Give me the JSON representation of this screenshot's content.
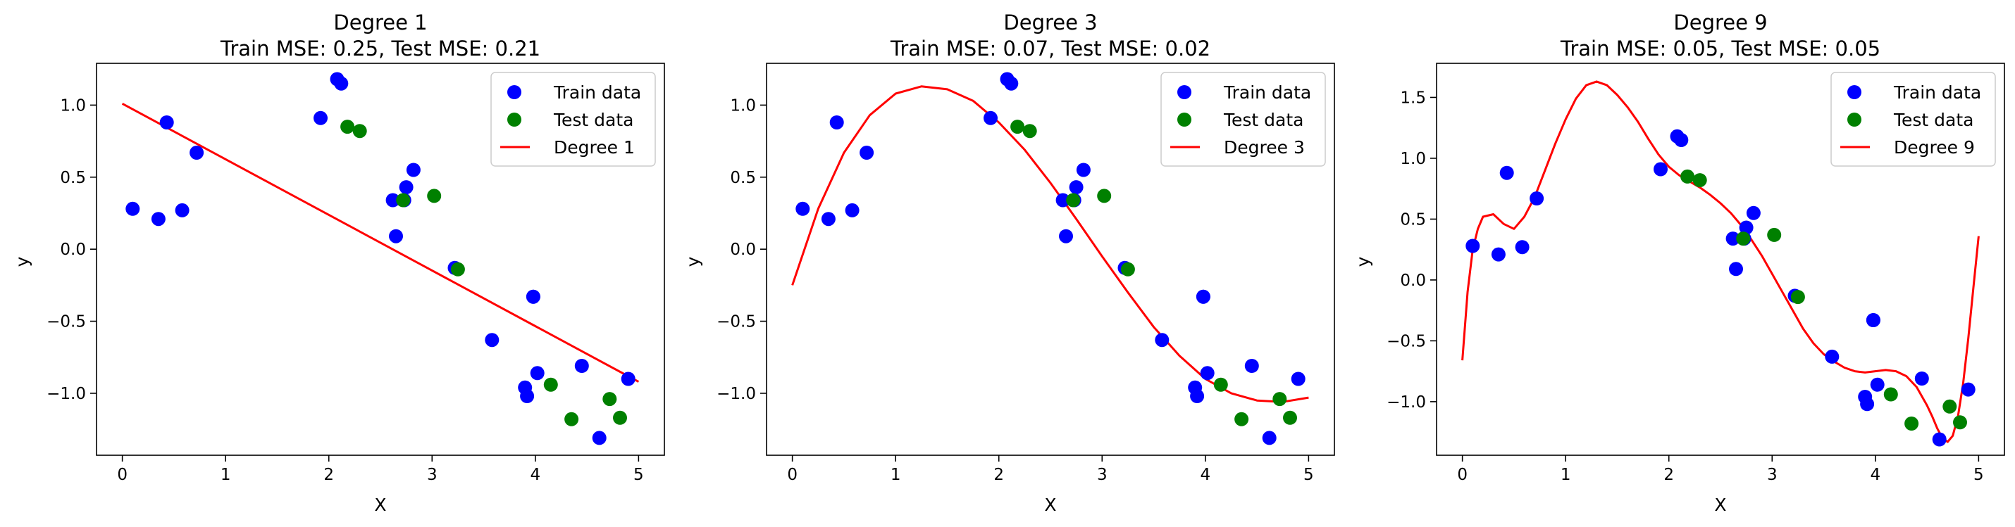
{
  "chart_data": [
    {
      "type": "scatter+line",
      "title": "Degree 1",
      "subtitle": "Train MSE: 0.25, Test MSE: 0.21",
      "xlabel": "X",
      "ylabel": "y",
      "xlim": [
        -0.25,
        5.25
      ],
      "ylim": [
        -1.43,
        1.29
      ],
      "xticks": [
        0,
        1,
        2,
        3,
        4,
        5
      ],
      "xtick_labels": [
        "0",
        "1",
        "2",
        "3",
        "4",
        "5"
      ],
      "yticks": [
        -1.0,
        -0.5,
        0.0,
        0.5,
        1.0
      ],
      "ytick_labels": [
        "−1.0",
        "−0.5",
        "0.0",
        "0.5",
        "1.0"
      ],
      "grid": false,
      "legend_position": "top-right",
      "legend": [
        "Train data",
        "Test data",
        "Degree 1"
      ],
      "fit": {
        "name": "Degree 1",
        "color": "#ff0000",
        "x": [
          0,
          5
        ],
        "y": [
          1.01,
          -0.92
        ]
      }
    },
    {
      "type": "scatter+line",
      "title": "Degree 3",
      "subtitle": "Train MSE: 0.07, Test MSE: 0.02",
      "xlabel": "X",
      "ylabel": "y",
      "xlim": [
        -0.25,
        5.25
      ],
      "ylim": [
        -1.43,
        1.29
      ],
      "xticks": [
        0,
        1,
        2,
        3,
        4,
        5
      ],
      "xtick_labels": [
        "0",
        "1",
        "2",
        "3",
        "4",
        "5"
      ],
      "yticks": [
        -1.0,
        -0.5,
        0.0,
        0.5,
        1.0
      ],
      "ytick_labels": [
        "−1.0",
        "−0.5",
        "0.0",
        "0.5",
        "1.0"
      ],
      "grid": false,
      "legend_position": "top-right",
      "legend": [
        "Train data",
        "Test data",
        "Degree 3"
      ],
      "fit": {
        "name": "Degree 3",
        "color": "#ff0000",
        "x": [
          0,
          0.25,
          0.5,
          0.75,
          1.0,
          1.25,
          1.5,
          1.75,
          2.0,
          2.25,
          2.5,
          2.75,
          3.0,
          3.25,
          3.5,
          3.75,
          4.0,
          4.25,
          4.5,
          4.75,
          5.0
        ],
        "y": [
          -0.25,
          0.28,
          0.67,
          0.93,
          1.08,
          1.13,
          1.11,
          1.03,
          0.88,
          0.69,
          0.46,
          0.21,
          -0.05,
          -0.3,
          -0.54,
          -0.74,
          -0.9,
          -1.0,
          -1.05,
          -1.06,
          -1.03
        ]
      }
    },
    {
      "type": "scatter+line",
      "title": "Degree 9",
      "subtitle": "Train MSE: 0.05, Test MSE: 0.05",
      "xlabel": "X",
      "ylabel": "y",
      "xlim": [
        -0.25,
        5.25
      ],
      "ylim": [
        -1.44,
        1.78
      ],
      "xticks": [
        0,
        1,
        2,
        3,
        4,
        5
      ],
      "xtick_labels": [
        "0",
        "1",
        "2",
        "3",
        "4",
        "5"
      ],
      "yticks": [
        -1.0,
        -0.5,
        0.0,
        0.5,
        1.0,
        1.5
      ],
      "ytick_labels": [
        "−1.0",
        "−0.5",
        "0.0",
        "0.5",
        "1.0",
        "1.5"
      ],
      "grid": false,
      "legend_position": "top-right",
      "legend": [
        "Train data",
        "Test data",
        "Degree 9"
      ],
      "fit": {
        "name": "Degree 9",
        "color": "#ff0000",
        "x": [
          0,
          0.05,
          0.1,
          0.15,
          0.2,
          0.3,
          0.4,
          0.5,
          0.6,
          0.7,
          0.8,
          0.9,
          1.0,
          1.1,
          1.2,
          1.3,
          1.4,
          1.5,
          1.6,
          1.7,
          1.8,
          1.9,
          2.0,
          2.1,
          2.2,
          2.3,
          2.4,
          2.5,
          2.6,
          2.7,
          2.8,
          2.9,
          3.0,
          3.1,
          3.2,
          3.3,
          3.4,
          3.5,
          3.6,
          3.7,
          3.8,
          3.9,
          4.0,
          4.1,
          4.2,
          4.3,
          4.4,
          4.5,
          4.55,
          4.6,
          4.65,
          4.7,
          4.75,
          4.8,
          4.85,
          4.9,
          4.95,
          5.0
        ],
        "y": [
          -0.66,
          -0.1,
          0.25,
          0.42,
          0.52,
          0.54,
          0.46,
          0.42,
          0.52,
          0.68,
          0.9,
          1.12,
          1.32,
          1.49,
          1.6,
          1.63,
          1.6,
          1.52,
          1.42,
          1.3,
          1.16,
          1.03,
          0.93,
          0.86,
          0.81,
          0.76,
          0.7,
          0.63,
          0.55,
          0.45,
          0.33,
          0.2,
          0.05,
          -0.1,
          -0.25,
          -0.4,
          -0.52,
          -0.61,
          -0.67,
          -0.72,
          -0.75,
          -0.76,
          -0.75,
          -0.74,
          -0.75,
          -0.79,
          -0.88,
          -1.03,
          -1.12,
          -1.22,
          -1.3,
          -1.33,
          -1.28,
          -1.12,
          -0.85,
          -0.48,
          -0.06,
          0.36
        ]
      }
    }
  ],
  "train_data": {
    "name": "Train data",
    "color": "#0000ff",
    "x": [
      0.1,
      0.35,
      0.43,
      0.58,
      0.72,
      1.92,
      2.08,
      2.12,
      2.62,
      2.65,
      2.73,
      2.75,
      2.82,
      3.22,
      3.58,
      3.9,
      3.92,
      3.98,
      3.98,
      4.02,
      4.45,
      4.62,
      4.9
    ],
    "y": [
      0.28,
      0.21,
      0.88,
      0.27,
      0.67,
      0.91,
      1.18,
      1.15,
      0.34,
      0.09,
      0.34,
      0.43,
      0.55,
      -0.13,
      -0.63,
      -0.96,
      -1.02,
      -0.33,
      -0.33,
      -0.86,
      -0.81,
      -1.31,
      -0.9
    ]
  },
  "test_data": {
    "name": "Test data",
    "color": "#008000",
    "x": [
      2.18,
      2.3,
      2.72,
      3.02,
      3.25,
      4.15,
      4.35,
      4.72,
      4.82
    ],
    "y": [
      0.85,
      0.82,
      0.34,
      0.37,
      -0.14,
      -0.94,
      -1.18,
      -1.04,
      -1.17
    ]
  }
}
